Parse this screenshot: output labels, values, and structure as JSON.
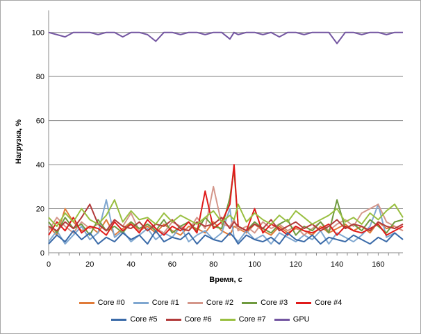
{
  "chart_data": {
    "type": "line",
    "xlabel": "Время, с",
    "ylabel": "Нагрузка, %",
    "xlim": [
      0,
      172
    ],
    "ylim": [
      0,
      110
    ],
    "x_ticks": [
      0,
      20,
      40,
      60,
      80,
      100,
      120,
      140,
      160
    ],
    "y_ticks": [
      0,
      20,
      40,
      60,
      80,
      100
    ],
    "grid": "horizontal",
    "legend_position": "bottom",
    "x": [
      0,
      4,
      8,
      12,
      16,
      20,
      24,
      28,
      32,
      36,
      40,
      44,
      48,
      52,
      56,
      60,
      64,
      68,
      72,
      76,
      80,
      84,
      88,
      90,
      92,
      96,
      100,
      104,
      108,
      112,
      116,
      120,
      124,
      128,
      132,
      136,
      140,
      144,
      148,
      152,
      156,
      160,
      164,
      168,
      172
    ],
    "series": [
      {
        "name": "Core #0",
        "color": "#e07b39",
        "values": [
          12,
          8,
          20,
          14,
          10,
          12,
          9,
          15,
          8,
          11,
          14,
          10,
          12,
          9,
          13,
          10,
          8,
          12,
          11,
          9,
          14,
          10,
          8,
          12,
          11,
          9,
          13,
          10,
          8,
          12,
          9,
          11,
          10,
          8,
          12,
          9,
          11,
          13,
          10,
          12,
          9,
          14,
          11,
          12,
          10
        ]
      },
      {
        "name": "Core #1",
        "color": "#7fa7d0",
        "values": [
          5,
          10,
          4,
          8,
          12,
          6,
          9,
          24,
          7,
          10,
          5,
          8,
          11,
          6,
          9,
          7,
          12,
          5,
          8,
          10,
          6,
          9,
          20,
          7,
          5,
          10,
          6,
          8,
          4,
          9,
          7,
          5,
          8,
          6,
          10,
          4,
          9,
          7,
          5,
          8,
          12,
          22,
          7,
          9,
          6
        ]
      },
      {
        "name": "Core #2",
        "color": "#d4968a",
        "values": [
          10,
          16,
          12,
          9,
          14,
          11,
          13,
          10,
          15,
          12,
          18,
          10,
          13,
          11,
          9,
          14,
          12,
          10,
          16,
          11,
          30,
          13,
          12,
          15,
          10,
          12,
          9,
          14,
          11,
          13,
          10,
          12,
          8,
          11,
          14,
          10,
          13,
          15,
          12,
          18,
          20,
          22,
          14,
          12,
          10
        ]
      },
      {
        "name": "Core #3",
        "color": "#6f9a3f",
        "values": [
          14,
          9,
          16,
          11,
          13,
          8,
          15,
          10,
          12,
          9,
          14,
          11,
          13,
          10,
          15,
          9,
          12,
          14,
          10,
          16,
          12,
          11,
          25,
          38,
          12,
          10,
          14,
          11,
          9,
          13,
          15,
          8,
          12,
          10,
          14,
          9,
          24,
          11,
          13,
          10,
          15,
          12,
          9,
          14,
          15
        ]
      },
      {
        "name": "Core #4",
        "color": "#e01b1b",
        "values": [
          8,
          14,
          10,
          16,
          9,
          12,
          11,
          8,
          14,
          10,
          13,
          9,
          15,
          11,
          8,
          12,
          10,
          14,
          9,
          28,
          11,
          14,
          22,
          40,
          12,
          10,
          20,
          9,
          13,
          11,
          8,
          12,
          10,
          9,
          11,
          13,
          8,
          12,
          10,
          9,
          11,
          13,
          8,
          10,
          12
        ]
      },
      {
        "name": "Core #5",
        "color": "#3a6aa8",
        "values": [
          4,
          8,
          5,
          10,
          6,
          9,
          4,
          7,
          5,
          9,
          6,
          8,
          4,
          10,
          5,
          7,
          6,
          9,
          4,
          8,
          6,
          5,
          9,
          7,
          4,
          8,
          6,
          5,
          7,
          4,
          9,
          6,
          5,
          8,
          4,
          7,
          6,
          5,
          8,
          6,
          4,
          7,
          5,
          9,
          6
        ]
      },
      {
        "name": "Core #6",
        "color": "#b23a3a",
        "values": [
          12,
          10,
          14,
          11,
          16,
          22,
          13,
          10,
          15,
          12,
          11,
          14,
          10,
          13,
          12,
          15,
          11,
          10,
          14,
          12,
          13,
          16,
          11,
          14,
          12,
          10,
          13,
          11,
          15,
          10,
          12,
          14,
          11,
          13,
          10,
          12,
          15,
          11,
          13,
          12,
          10,
          14,
          12,
          11,
          13
        ]
      },
      {
        "name": "Core #7",
        "color": "#99bf40",
        "values": [
          16,
          12,
          18,
          14,
          20,
          15,
          13,
          17,
          24,
          14,
          19,
          15,
          16,
          13,
          18,
          14,
          17,
          15,
          13,
          16,
          19,
          14,
          17,
          15,
          22,
          14,
          18,
          15,
          13,
          17,
          14,
          19,
          16,
          13,
          15,
          17,
          20,
          14,
          16,
          13,
          18,
          15,
          19,
          22,
          16
        ]
      },
      {
        "name": "GPU",
        "color": "#7355a1",
        "values": [
          100,
          99,
          98,
          100,
          100,
          100,
          99,
          100,
          100,
          98,
          100,
          100,
          99,
          96,
          100,
          100,
          99,
          100,
          100,
          99,
          100,
          100,
          97,
          100,
          99,
          100,
          100,
          99,
          100,
          98,
          100,
          100,
          99,
          100,
          100,
          100,
          95,
          100,
          100,
          99,
          100,
          100,
          99,
          100,
          100
        ]
      }
    ]
  }
}
